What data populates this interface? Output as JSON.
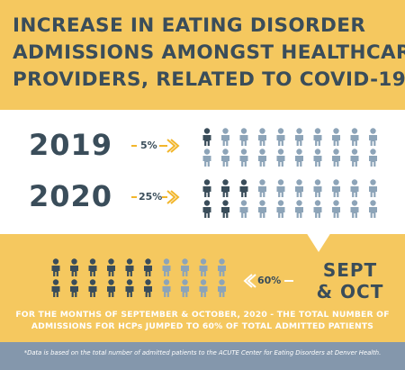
{
  "title_lines": [
    "INCREASE IN EATING DISORDER",
    "ADMISSIONS AMONGST HEALTHCARE",
    "PROVIDERS, RELATED TO COVID-19"
  ],
  "rows": [
    {
      "year": "2019",
      "percent_label": "5%"
    },
    {
      "year": "2020",
      "percent_label": "25%"
    }
  ],
  "sept_oct": {
    "percent_label": "60%",
    "line1": "SEPT",
    "line2": "& OCT"
  },
  "note_lines": [
    "FOR THE MONTHS OF SEPTEMBER & OCTOBER, 2020 - THE TOTAL NUMBER OF",
    "ADMISSIONS FOR HCPs JUMPED TO 60% OF TOTAL ADMITTED PATIENTS"
  ],
  "footer": "*Data is based on the total number of admitted patients to the ACUTE Center for Eating Disorders at Denver Health.",
  "colors": {
    "background": "#f5c85f",
    "highlight_person": "#3a4d5a",
    "other_person": "#8da4b8",
    "footer_bg": "#8497ac",
    "arrow": "#f2b62c"
  },
  "chart_data": {
    "type": "pictograph",
    "categories": [
      "2019",
      "2020",
      "SEPT & OCT"
    ],
    "values": [
      5,
      25,
      60
    ],
    "unit": "%"
  }
}
